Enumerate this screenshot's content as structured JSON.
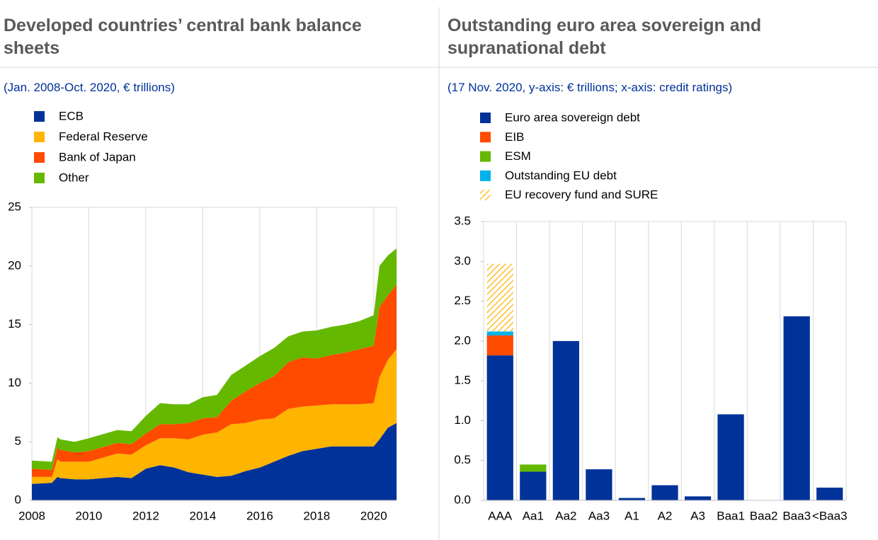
{
  "chart_data": [
    {
      "type": "area",
      "stacked": true,
      "title": "Developed countries’ central bank balance sheets",
      "subtitle": "(Jan. 2008-Oct. 2020, € trillions)",
      "x": [
        2008,
        2008.7,
        2008.9,
        2009,
        2009.5,
        2010,
        2011,
        2011.5,
        2012,
        2012.5,
        2013,
        2013.5,
        2014,
        2014.5,
        2015,
        2015.5,
        2016,
        2016.5,
        2017,
        2017.5,
        2018,
        2018.5,
        2019,
        2019.5,
        2020,
        2020.2,
        2020.5,
        2020.8
      ],
      "series": [
        {
          "name": "ECB",
          "color": "#003299",
          "values": [
            1.4,
            1.5,
            2.0,
            1.9,
            1.8,
            1.8,
            2.0,
            1.9,
            2.7,
            3.0,
            2.8,
            2.4,
            2.2,
            2.0,
            2.1,
            2.5,
            2.8,
            3.3,
            3.8,
            4.2,
            4.4,
            4.6,
            4.6,
            4.6,
            4.6,
            5.2,
            6.2,
            6.6
          ]
        },
        {
          "name": "Federal Reserve",
          "color": "#ffb400",
          "values": [
            0.6,
            0.5,
            1.5,
            1.4,
            1.5,
            1.5,
            2.0,
            2.0,
            2.0,
            2.3,
            2.5,
            2.8,
            3.4,
            3.8,
            4.4,
            4.1,
            4.1,
            3.7,
            4.0,
            3.8,
            3.7,
            3.6,
            3.6,
            3.6,
            3.7,
            5.3,
            5.8,
            6.3
          ]
        },
        {
          "name": "Bank of Japan",
          "color": "#ff4b00",
          "values": [
            0.7,
            0.6,
            1.0,
            1.0,
            0.8,
            0.9,
            0.9,
            0.9,
            1.0,
            1.2,
            1.2,
            1.4,
            1.4,
            1.3,
            2.0,
            2.7,
            3.1,
            3.6,
            4.0,
            4.2,
            4.0,
            4.2,
            4.4,
            4.7,
            4.9,
            6.0,
            5.5,
            5.5
          ]
        },
        {
          "name": "Other",
          "color": "#65b800",
          "values": [
            0.7,
            0.7,
            0.9,
            0.9,
            0.9,
            1.1,
            1.1,
            1.1,
            1.5,
            1.8,
            1.7,
            1.6,
            1.8,
            1.9,
            2.2,
            2.2,
            2.3,
            2.4,
            2.2,
            2.2,
            2.4,
            2.4,
            2.4,
            2.4,
            2.6,
            3.5,
            3.4,
            3.1
          ]
        }
      ],
      "xlim": [
        2008,
        2020.8
      ],
      "xticks": [
        2008,
        2010,
        2012,
        2014,
        2016,
        2018,
        2020
      ],
      "ylim": [
        0,
        25
      ],
      "yticks": [
        0,
        5,
        10,
        15,
        20,
        25
      ],
      "grid": true
    },
    {
      "type": "bar",
      "stacked": true,
      "title": "Outstanding euro area sovereign and supranational debt",
      "subtitle": "(17 Nov. 2020, y-axis: € trillions; x-axis: credit ratings)",
      "categories": [
        "AAA",
        "Aa1",
        "Aa2",
        "Aa3",
        "A1",
        "A2",
        "A3",
        "Baa1",
        "Baa2",
        "Baa3",
        "<Baa3"
      ],
      "series": [
        {
          "name": "Euro area sovereign debt",
          "color": "#003299",
          "values": [
            1.82,
            0.36,
            2.0,
            0.39,
            0.03,
            0.19,
            0.05,
            1.08,
            null,
            2.31,
            0.16
          ]
        },
        {
          "name": "EIB",
          "color": "#ff4b00",
          "values": [
            0.25,
            null,
            null,
            null,
            null,
            null,
            null,
            null,
            null,
            null,
            null
          ]
        },
        {
          "name": "ESM",
          "color": "#65b800",
          "values": [
            null,
            0.09,
            null,
            null,
            null,
            null,
            null,
            null,
            null,
            null,
            null
          ]
        },
        {
          "name": "Outstanding EU debt",
          "color": "#00b1ea",
          "values": [
            0.05,
            null,
            null,
            null,
            null,
            null,
            null,
            null,
            null,
            null,
            null
          ]
        },
        {
          "name": "EU recovery fund and SURE",
          "color": "#ffb400",
          "hatch": true,
          "values": [
            0.85,
            null,
            null,
            null,
            null,
            null,
            null,
            null,
            null,
            null,
            null
          ]
        }
      ],
      "ylim": [
        0,
        3.5
      ],
      "yticks": [
        {
          "value": 0,
          "label": "0.0"
        },
        0.5,
        {
          "value": 1,
          "label": "1.0"
        },
        1.5,
        {
          "value": 2,
          "label": "2.0"
        },
        2.5,
        {
          "value": 3,
          "label": "3.0"
        },
        3.5
      ],
      "grid": true
    }
  ]
}
